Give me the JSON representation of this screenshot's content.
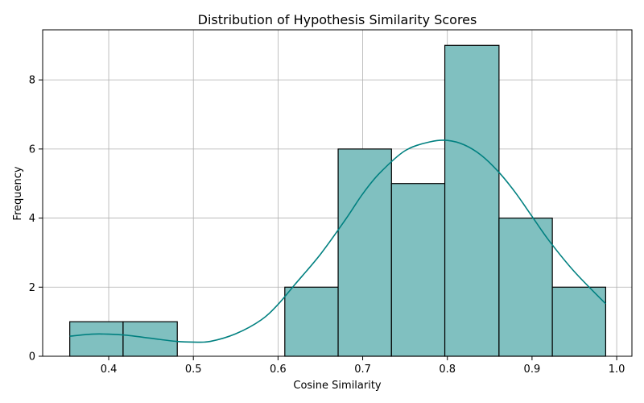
{
  "chart_data": {
    "type": "bar",
    "title": "Distribution of Hypothesis Similarity Scores",
    "xlabel": "Cosine Similarity",
    "ylabel": "Frequency",
    "xlim": [
      0.322,
      1.018
    ],
    "ylim": [
      0,
      9.45
    ],
    "x_ticks": [
      0.4,
      0.5,
      0.6,
      0.7,
      0.8,
      0.9,
      1.0
    ],
    "x_tick_labels": [
      "0.4",
      "0.5",
      "0.6",
      "0.7",
      "0.8",
      "0.9",
      "1.0"
    ],
    "y_ticks": [
      0,
      2,
      4,
      6,
      8
    ],
    "y_tick_labels": [
      "0",
      "2",
      "4",
      "6",
      "8"
    ],
    "grid": true,
    "bins": [
      {
        "x0": 0.354,
        "x1": 0.417,
        "count": 1
      },
      {
        "x0": 0.417,
        "x1": 0.481,
        "count": 1
      },
      {
        "x0": 0.481,
        "x1": 0.544,
        "count": 0
      },
      {
        "x0": 0.544,
        "x1": 0.608,
        "count": 0
      },
      {
        "x0": 0.608,
        "x1": 0.671,
        "count": 2
      },
      {
        "x0": 0.671,
        "x1": 0.734,
        "count": 6
      },
      {
        "x0": 0.734,
        "x1": 0.797,
        "count": 5
      },
      {
        "x0": 0.797,
        "x1": 0.861,
        "count": 9
      },
      {
        "x0": 0.861,
        "x1": 0.924,
        "count": 4
      },
      {
        "x0": 0.924,
        "x1": 0.987,
        "count": 2
      }
    ],
    "kde": {
      "x": [
        0.354,
        0.38,
        0.4,
        0.42,
        0.45,
        0.48,
        0.5,
        0.52,
        0.55,
        0.58,
        0.6,
        0.62,
        0.65,
        0.68,
        0.7,
        0.72,
        0.75,
        0.78,
        0.8,
        0.82,
        0.84,
        0.86,
        0.88,
        0.9,
        0.92,
        0.95,
        0.987
      ],
      "y": [
        0.58,
        0.64,
        0.64,
        0.61,
        0.52,
        0.43,
        0.41,
        0.43,
        0.65,
        1.05,
        1.5,
        2.08,
        2.95,
        3.97,
        4.7,
        5.3,
        5.95,
        6.21,
        6.25,
        6.12,
        5.82,
        5.35,
        4.75,
        4.05,
        3.35,
        2.45,
        1.52
      ]
    },
    "bar_color": "#80c0c0",
    "bar_edge_color": "#000000",
    "kde_color": "#008080"
  }
}
